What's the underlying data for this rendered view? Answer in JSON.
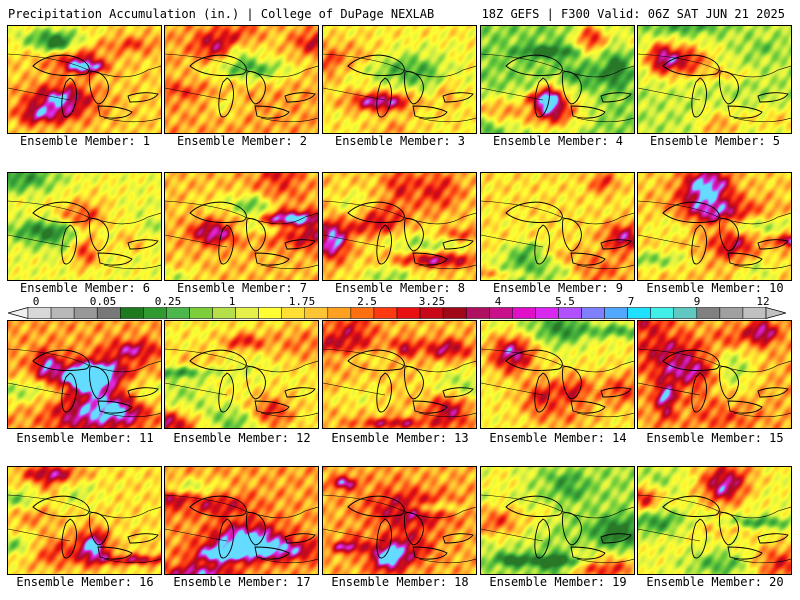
{
  "header": {
    "title_left": "Precipitation Accumulation (in.) | College of DuPage NEXLAB",
    "title_right": "18Z GEFS | F300 Valid: 06Z SAT JUN 21 2025"
  },
  "panels": [
    {
      "label": "Ensemble Member: 1"
    },
    {
      "label": "Ensemble Member: 2"
    },
    {
      "label": "Ensemble Member: 3"
    },
    {
      "label": "Ensemble Member: 4"
    },
    {
      "label": "Ensemble Member: 5"
    },
    {
      "label": "Ensemble Member: 6"
    },
    {
      "label": "Ensemble Member: 7"
    },
    {
      "label": "Ensemble Member: 8"
    },
    {
      "label": "Ensemble Member: 9"
    },
    {
      "label": "Ensemble Member: 10"
    },
    {
      "label": "Ensemble Member: 11"
    },
    {
      "label": "Ensemble Member: 12"
    },
    {
      "label": "Ensemble Member: 13"
    },
    {
      "label": "Ensemble Member: 14"
    },
    {
      "label": "Ensemble Member: 15"
    },
    {
      "label": "Ensemble Member: 16"
    },
    {
      "label": "Ensemble Member: 17"
    },
    {
      "label": "Ensemble Member: 18"
    },
    {
      "label": "Ensemble Member: 19"
    },
    {
      "label": "Ensemble Member: 20"
    }
  ],
  "colorbar": {
    "tick_labels": [
      "0",
      "0.05",
      "0.25",
      "1",
      "1.75",
      "2.5",
      "3.25",
      "4",
      "5.5",
      "7",
      "9",
      "12"
    ],
    "colors": [
      "#d8d8d8",
      "#b8b8b8",
      "#989898",
      "#787878",
      "#1f7a1f",
      "#2f9a2f",
      "#4cb84c",
      "#7ccf3a",
      "#b5e04a",
      "#e6f04a",
      "#ffff33",
      "#ffe033",
      "#ffc433",
      "#ffa020",
      "#ff7010",
      "#ff3a10",
      "#e81010",
      "#c80818",
      "#a00818",
      "#b01060",
      "#c8108a",
      "#e010c8",
      "#d828f0",
      "#b050ff",
      "#8080ff",
      "#50a8ff",
      "#20e0ff",
      "#40f0e8",
      "#60c8c0",
      "#808080",
      "#a0a0a0",
      "#c0c0c0"
    ]
  }
}
